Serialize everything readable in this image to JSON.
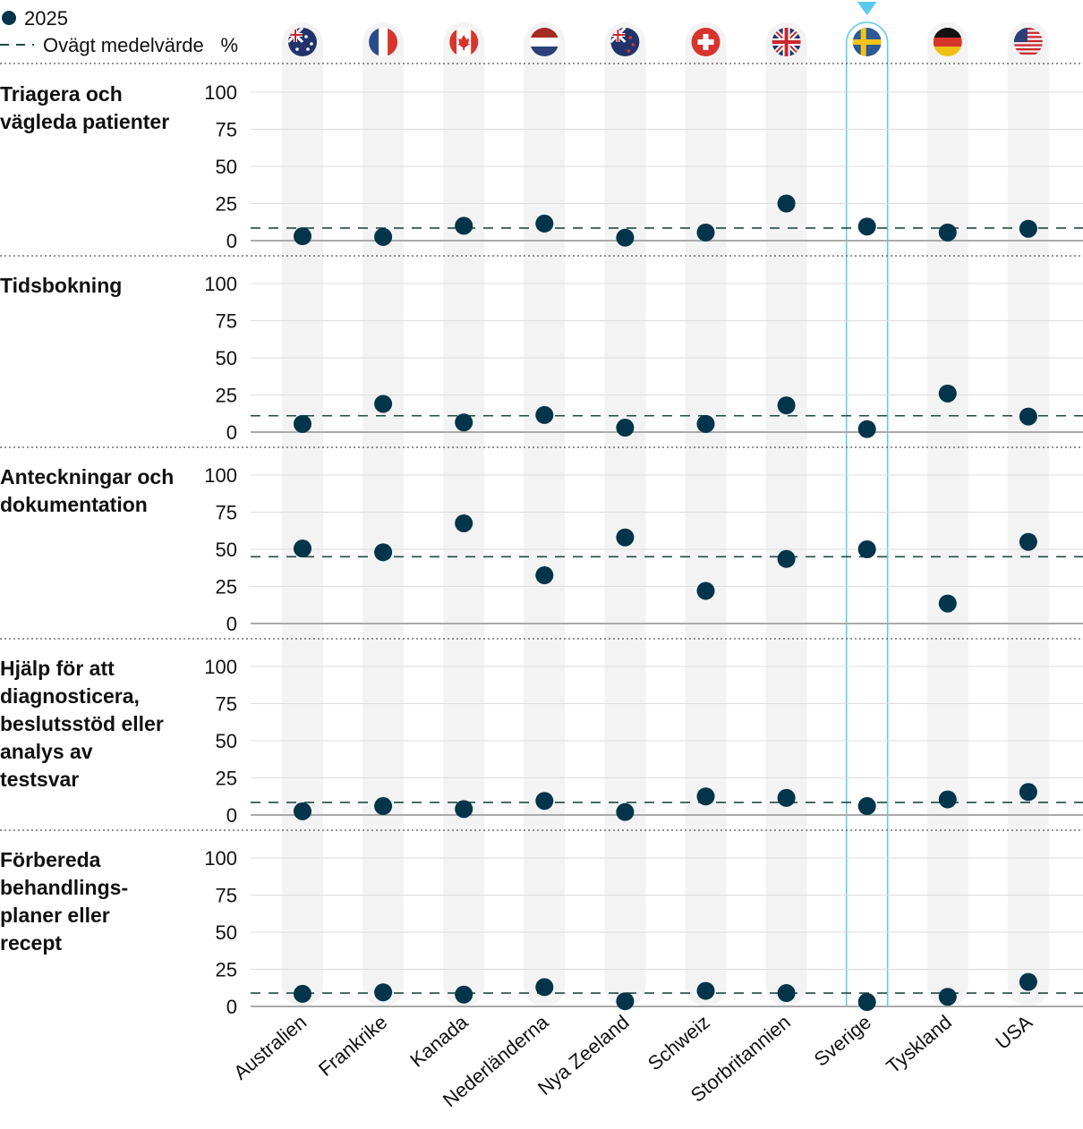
{
  "legend": {
    "dot_label": "2025",
    "line_label": "Ovägt medelvärde",
    "unit": "%"
  },
  "colors": {
    "dot": "#02344a",
    "average_line": "#1f4a44",
    "band": "#f3f3f3",
    "highlight": "#5bc8f0",
    "grid": "#dddddd",
    "zero": "#aaaaaa"
  },
  "chart_data": {
    "type": "scatter",
    "categories": [
      "Australien",
      "Frankrike",
      "Kanada",
      "Nederländerna",
      "Nya Zeeland",
      "Schweiz",
      "Storbritannien",
      "Sverige",
      "Tyskland",
      "USA"
    ],
    "flags": [
      "au",
      "fr",
      "ca",
      "nl",
      "nz",
      "ch",
      "gb",
      "se",
      "de",
      "us"
    ],
    "highlighted": "Sverige",
    "ylim": [
      0,
      100
    ],
    "yticks": [
      "0",
      "25",
      "50",
      "75",
      "100"
    ],
    "panels": [
      {
        "title": [
          "Triagera och",
          "vägleda patienter"
        ],
        "values": [
          3,
          2.5,
          10,
          11.5,
          2,
          5.5,
          25,
          9.5,
          5.5,
          8
        ],
        "average": 8.5
      },
      {
        "title": [
          "Tidsbokning"
        ],
        "values": [
          5.5,
          19,
          6.5,
          11.5,
          3,
          5.5,
          18,
          2,
          26,
          10.5
        ],
        "average": 11
      },
      {
        "title": [
          "Anteckningar och",
          "dokumentation"
        ],
        "values": [
          50.5,
          48,
          67.5,
          32.5,
          58,
          22,
          43.5,
          50,
          13.5,
          55
        ],
        "average": 45
      },
      {
        "title": [
          "Hjälp för att",
          "diagnosticera,",
          "beslutsstöd eller",
          "analys av",
          "testsvar"
        ],
        "values": [
          2.5,
          6,
          4,
          9.5,
          2,
          12.5,
          11.5,
          6,
          10.5,
          15.5
        ],
        "average": 8.5
      },
      {
        "title": [
          "Förbereda",
          "behandlings-",
          "planer eller",
          "recept"
        ],
        "values": [
          8.5,
          9.5,
          8,
          13,
          3.5,
          10.5,
          9,
          3,
          6.5,
          16.5
        ],
        "average": 9
      }
    ]
  }
}
